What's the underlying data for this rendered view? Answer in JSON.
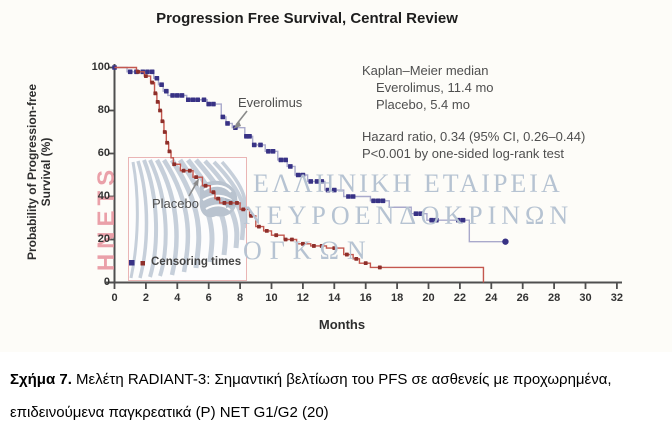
{
  "title": "Progression Free Survival, Central Review",
  "annotations": {
    "km_header": "Kaplan–Meier median",
    "km_everolimus": "Everolimus, 11.4 mo",
    "km_placebo": "Placebo, 5.4 mo",
    "hazard": "Hazard ratio, 0.34 (95% CI, 0.26–0.44)",
    "pvalue": "P<0.001 by one-sided log-rank test",
    "everolimus_label": "Everolimus",
    "placebo_label": "Placebo",
    "legend": "Censoring times"
  },
  "watermark": {
    "vertical_text": "HNETS",
    "line1": "ΕΛΛΗΝΙΚΗ ΕΤΑΙΡΕΙΑ",
    "line2": "ΝΕΥΡΟΕΝΔΟΚΡΙΝΩΝ",
    "line3": "ΟΓΚΩΝ"
  },
  "caption": {
    "label": "Σχήμα 7.",
    "text": " Μελέτη RADIANT-3: Σημαντική βελτίωση του PFS σε ασθενείς με προχωρημένα, επιδεινούμενα παγκρεατικά (P) NET G1/G2 (20)"
  },
  "chart_data": {
    "type": "line",
    "subtype": "kaplan-meier-step",
    "title": "Progression Free Survival, Central Review",
    "xlabel": "Months",
    "ylabel": "Probability of Progression-free Survival (%)",
    "ylabel_lines": [
      "Probability of Progression-free",
      "Survival (%)"
    ],
    "xlim": [
      0,
      32
    ],
    "ylim": [
      0,
      100
    ],
    "x_ticks": [
      0,
      2,
      4,
      6,
      8,
      10,
      12,
      14,
      16,
      18,
      20,
      22,
      24,
      26,
      28,
      30,
      32
    ],
    "y_ticks": [
      0,
      20,
      40,
      60,
      80,
      100
    ],
    "grid": false,
    "legend_position": "inside-bottom-left",
    "colors": {
      "everolimus_marker": "#383285",
      "everolimus_line": "#a9a9cb",
      "placebo_marker": "#8e2f2a",
      "placebo_line": "#c4574e",
      "axis": "#4f4f4f",
      "annotation_text": "#4f4f4f",
      "watermark_blue": "#b6c3d2",
      "watermark_pink": "#e897a1"
    },
    "series": [
      {
        "name": "Everolimus",
        "median_months": 11.4,
        "steps": [
          [
            0,
            100
          ],
          [
            0.8,
            98
          ],
          [
            2.5,
            95
          ],
          [
            2.8,
            92
          ],
          [
            3.1,
            89
          ],
          [
            3.4,
            87
          ],
          [
            4.6,
            85
          ],
          [
            5.9,
            83
          ],
          [
            6.8,
            77
          ],
          [
            7.1,
            74
          ],
          [
            7.5,
            72
          ],
          [
            8.3,
            68
          ],
          [
            8.8,
            64
          ],
          [
            9.6,
            61
          ],
          [
            10.4,
            57
          ],
          [
            11.0,
            54
          ],
          [
            11.5,
            50
          ],
          [
            12.3,
            47
          ],
          [
            13.4,
            43
          ],
          [
            14.6,
            40
          ],
          [
            16.3,
            38
          ],
          [
            17.5,
            35
          ],
          [
            18.9,
            32
          ],
          [
            19.9,
            29
          ],
          [
            22.6,
            19
          ]
        ],
        "end_month": 24.9,
        "terminal_dot": [
          24.9,
          19
        ],
        "censor_months": [
          0,
          1.0,
          1.4,
          1.8,
          2.1,
          2.4,
          2.7,
          3.0,
          3.3,
          3.7,
          4.0,
          4.3,
          4.7,
          5.0,
          5.3,
          5.7,
          6.0,
          6.3,
          6.9,
          7.2,
          7.7,
          8.4,
          8.6,
          8.9,
          9.3,
          9.8,
          10.1,
          10.6,
          10.9,
          11.2,
          11.7,
          12.0,
          12.5,
          12.9,
          13.2,
          13.6,
          14.0,
          14.9,
          15.2,
          16.5,
          16.8,
          17.1,
          19.2,
          19.5,
          20.2,
          20.5,
          21.9,
          22.2
        ]
      },
      {
        "name": "Placebo",
        "median_months": 5.4,
        "steps": [
          [
            0,
            100
          ],
          [
            1.4,
            98
          ],
          [
            1.9,
            96
          ],
          [
            2.3,
            93
          ],
          [
            2.55,
            88
          ],
          [
            2.7,
            84
          ],
          [
            2.85,
            80
          ],
          [
            3.0,
            75
          ],
          [
            3.15,
            70
          ],
          [
            3.3,
            65
          ],
          [
            3.45,
            61
          ],
          [
            3.6,
            58
          ],
          [
            3.75,
            55
          ],
          [
            4.2,
            52
          ],
          [
            5.0,
            49
          ],
          [
            5.6,
            45
          ],
          [
            6.1,
            42
          ],
          [
            6.4,
            39
          ],
          [
            6.7,
            37
          ],
          [
            8.0,
            34
          ],
          [
            8.6,
            31
          ],
          [
            9.0,
            26
          ],
          [
            9.5,
            24
          ],
          [
            10.0,
            22
          ],
          [
            10.8,
            20
          ],
          [
            11.6,
            18
          ],
          [
            12.5,
            17
          ],
          [
            13.5,
            16
          ],
          [
            14.6,
            13
          ],
          [
            15.2,
            11
          ],
          [
            15.6,
            9
          ],
          [
            16.3,
            7
          ],
          [
            23.5,
            0
          ]
        ],
        "end_month": 23.5,
        "censor_months": [
          1.5,
          2.0,
          2.4,
          2.6,
          2.75,
          2.9,
          3.05,
          3.2,
          3.35,
          3.5,
          3.8,
          4.4,
          4.8,
          5.2,
          5.8,
          6.3,
          6.6,
          7.0,
          7.4,
          7.8,
          8.2,
          8.7,
          9.2,
          9.7,
          10.3,
          10.9,
          11.3,
          12.0,
          12.7,
          13.2,
          14.0,
          14.8,
          15.4,
          16.0,
          16.9
        ]
      }
    ]
  }
}
